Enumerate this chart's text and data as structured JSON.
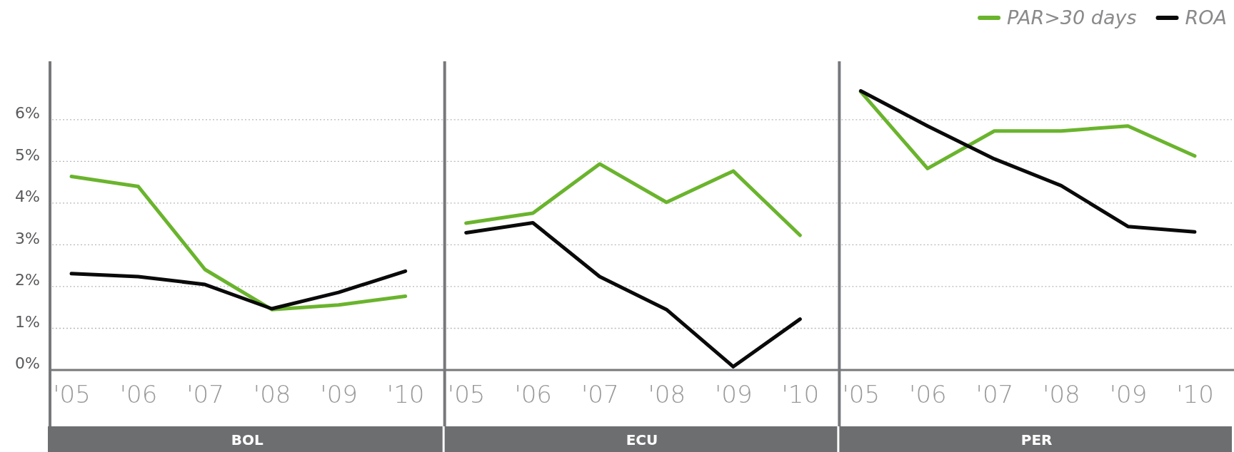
{
  "chart_data": [
    {
      "type": "line",
      "title": "BOL",
      "categories": [
        "'05",
        "'06",
        "'07",
        "'08",
        "'09",
        "'10"
      ],
      "ylim": [
        0,
        7.4
      ],
      "yticks": [
        {
          "value": 0,
          "label": "0%"
        },
        {
          "value": 1,
          "label": "1%"
        },
        {
          "value": 2,
          "label": "2%"
        },
        {
          "value": 3,
          "label": "3%"
        },
        {
          "value": 4,
          "label": "4%"
        },
        {
          "value": 5,
          "label": "5%"
        },
        {
          "value": 6,
          "label": "6%"
        }
      ],
      "grid": "y",
      "legend": "top right",
      "series": [
        {
          "name": "PAR>30 days",
          "color": "#6ab42d",
          "values": [
            4.64,
            4.4,
            2.41,
            1.45,
            1.56,
            1.77
          ]
        },
        {
          "name": "ROA",
          "color": "#0a0a0a",
          "values": [
            2.31,
            2.24,
            2.05,
            1.47,
            1.86,
            2.37
          ]
        }
      ]
    },
    {
      "type": "line",
      "title": "ECU",
      "categories": [
        "'05",
        "'06",
        "'07",
        "'08",
        "'09",
        "'10"
      ],
      "ylim": [
        0,
        7.4
      ],
      "yticks": [
        {
          "value": 0,
          "label": null
        },
        {
          "value": 1,
          "label": null
        },
        {
          "value": 2,
          "label": null
        },
        {
          "value": 3,
          "label": null
        },
        {
          "value": 4,
          "label": null
        },
        {
          "value": 5,
          "label": null
        },
        {
          "value": 6,
          "label": null
        }
      ],
      "grid": "y",
      "tick_labels": "x",
      "series": [
        {
          "color": "#6ab42d",
          "values": [
            3.52,
            3.76,
            4.94,
            4.02,
            4.77,
            3.23
          ]
        },
        {
          "color": "#0a0a0a",
          "values": [
            3.29,
            3.53,
            2.24,
            1.45,
            0.08,
            1.22
          ]
        }
      ]
    },
    {
      "type": "line",
      "title": "PER",
      "categories": [
        "'05",
        "'06",
        "'07",
        "'08",
        "'09",
        "'10"
      ],
      "ylim": [
        0,
        7.4
      ],
      "yticks": [
        {
          "value": 0,
          "label": null
        },
        {
          "value": 1,
          "label": null
        },
        {
          "value": 2,
          "label": null
        },
        {
          "value": 3,
          "label": null
        },
        {
          "value": 4,
          "label": null
        },
        {
          "value": 5,
          "label": null
        },
        {
          "value": 6,
          "label": null
        }
      ],
      "grid": "y",
      "tick_labels": "x",
      "series": [
        {
          "color": "#6ab42d",
          "values": [
            6.67,
            4.83,
            5.73,
            5.73,
            5.85,
            5.13
          ]
        },
        {
          "color": "#0a0a0a",
          "values": [
            6.69,
            5.85,
            5.06,
            4.42,
            3.44,
            3.31
          ]
        }
      ]
    }
  ]
}
